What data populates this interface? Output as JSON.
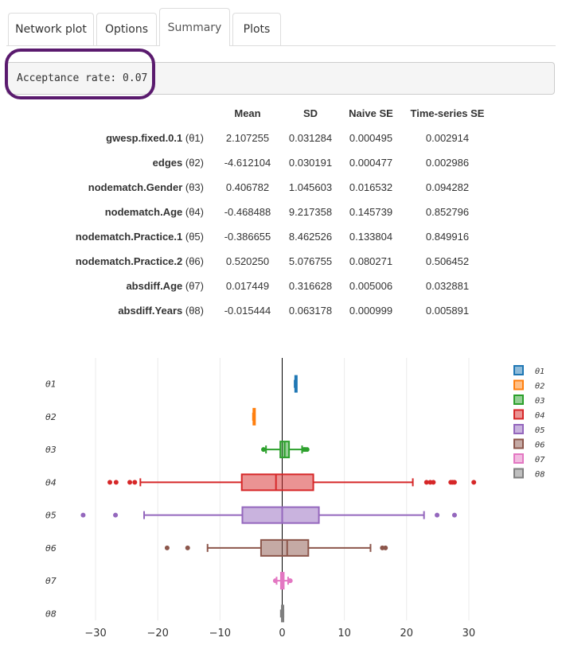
{
  "tabs": [
    {
      "label": "Network plot",
      "active": false
    },
    {
      "label": "Options",
      "active": false
    },
    {
      "label": "Summary",
      "active": true
    },
    {
      "label": "Plots",
      "active": false
    }
  ],
  "acceptance": {
    "text": "Acceptance rate: 0.07"
  },
  "summary_table": {
    "headers": [
      "Mean",
      "SD",
      "Naive SE",
      "Time-series SE"
    ],
    "rows": [
      {
        "name": "gwesp.fixed.0.1",
        "theta": "(θ1)",
        "mean": "2.107255",
        "sd": "0.031284",
        "naive": "0.000495",
        "ts": "0.002914"
      },
      {
        "name": "edges",
        "theta": "(θ2)",
        "mean": "-4.612104",
        "sd": "0.030191",
        "naive": "0.000477",
        "ts": "0.002986"
      },
      {
        "name": "nodematch.Gender",
        "theta": "(θ3)",
        "mean": "0.406782",
        "sd": "1.045603",
        "naive": "0.016532",
        "ts": "0.094282"
      },
      {
        "name": "nodematch.Age",
        "theta": "(θ4)",
        "mean": "-0.468488",
        "sd": "9.217358",
        "naive": "0.145739",
        "ts": "0.852796"
      },
      {
        "name": "nodematch.Practice.1",
        "theta": "(θ5)",
        "mean": "-0.386655",
        "sd": "8.462526",
        "naive": "0.133804",
        "ts": "0.849916"
      },
      {
        "name": "nodematch.Practice.2",
        "theta": "(θ6)",
        "mean": "0.520250",
        "sd": "5.076755",
        "naive": "0.080271",
        "ts": "0.506452"
      },
      {
        "name": "absdiff.Age",
        "theta": "(θ7)",
        "mean": "0.017449",
        "sd": "0.316628",
        "naive": "0.005006",
        "ts": "0.032881"
      },
      {
        "name": "absdiff.Years",
        "theta": "(θ8)",
        "mean": "-0.015444",
        "sd": "0.063178",
        "naive": "0.000999",
        "ts": "0.005891"
      }
    ]
  },
  "chart_data": {
    "type": "box",
    "orientation": "horizontal",
    "xlim": [
      -35,
      35
    ],
    "xticks": [
      -30,
      -20,
      -10,
      0,
      10,
      20,
      30
    ],
    "xtick_labels": [
      "−30",
      "−20",
      "−10",
      "0",
      "10",
      "20",
      "30"
    ],
    "grid": true,
    "zero_line": true,
    "legend_position": "top-right",
    "series": [
      {
        "name": "θ1",
        "color": "#1f77b4",
        "whisker_low": 2.0,
        "q1": 2.09,
        "median": 2.11,
        "q3": 2.13,
        "whisker_high": 2.2,
        "outliers": []
      },
      {
        "name": "θ2",
        "color": "#ff7f0e",
        "whisker_low": -4.7,
        "q1": -4.63,
        "median": -4.61,
        "q3": -4.59,
        "whisker_high": -4.52,
        "outliers": []
      },
      {
        "name": "θ3",
        "color": "#2ca02c",
        "whisker_low": -2.6,
        "q1": -0.3,
        "median": 0.4,
        "q3": 1.1,
        "whisker_high": 3.2,
        "outliers": [
          -3.0,
          3.5,
          3.7,
          4.0
        ]
      },
      {
        "name": "θ4",
        "color": "#d62728",
        "whisker_low": -22.8,
        "q1": -6.5,
        "median": -1.0,
        "q3": 5.0,
        "whisker_high": 21.0,
        "outliers": [
          -27.7,
          -26.7,
          -24.5,
          -23.7,
          23.2,
          23.8,
          24.3,
          27.1,
          27.4,
          27.7,
          30.8
        ]
      },
      {
        "name": "θ5",
        "color": "#9467bd",
        "whisker_low": -22.2,
        "q1": -6.4,
        "median": 0.0,
        "q3": 5.9,
        "whisker_high": 22.8,
        "outliers": [
          -32.0,
          -26.8,
          24.9,
          27.7
        ]
      },
      {
        "name": "θ6",
        "color": "#8c564b",
        "whisker_low": -12.0,
        "q1": -3.4,
        "median": 0.8,
        "q3": 4.2,
        "whisker_high": 14.2,
        "outliers": [
          -18.5,
          -15.2,
          16.1,
          16.6
        ]
      },
      {
        "name": "θ7",
        "color": "#e377c2",
        "whisker_low": -0.9,
        "q1": -0.2,
        "median": 0.0,
        "q3": 0.25,
        "whisker_high": 0.95,
        "outliers": [
          -1.1,
          1.2,
          1.3
        ]
      },
      {
        "name": "θ8",
        "color": "#7f7f7f",
        "whisker_low": -0.22,
        "q1": -0.06,
        "median": -0.015,
        "q3": 0.03,
        "whisker_high": 0.2,
        "outliers": []
      }
    ]
  }
}
